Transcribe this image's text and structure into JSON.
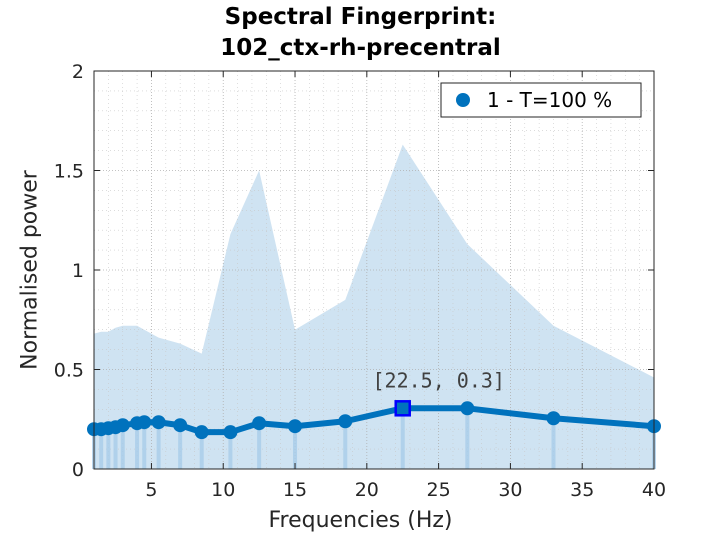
{
  "chart_data": {
    "type": "line",
    "title_line1": "Spectral Fingerprint:",
    "title_line2": "102_ctx-rh-precentral",
    "xlabel": "Frequencies (Hz)",
    "ylabel": "Normalised power",
    "xlim": [
      1,
      40
    ],
    "ylim": [
      0,
      2
    ],
    "xticks": [
      5,
      10,
      15,
      20,
      25,
      30,
      35,
      40
    ],
    "yticks": [
      0,
      0.5,
      1,
      1.5,
      2
    ],
    "ytick_labels": [
      "0",
      "0.5",
      "1",
      "1.5",
      "2"
    ],
    "grid": true,
    "minor_grid": true,
    "legend_position": "top-right",
    "series_color": "#0072BD",
    "band_color": "#CFE3F2",
    "series": [
      {
        "name": "1 - T=100 %",
        "x": [
          1,
          1.5,
          2,
          2.5,
          3,
          4,
          4.5,
          5.5,
          7,
          8.5,
          10.5,
          12.5,
          15,
          18.5,
          22.5,
          27,
          33,
          40
        ],
        "y": [
          0.2,
          0.2,
          0.205,
          0.21,
          0.22,
          0.23,
          0.235,
          0.235,
          0.22,
          0.185,
          0.185,
          0.23,
          0.215,
          0.24,
          0.305,
          0.305,
          0.255,
          0.215
        ]
      }
    ],
    "band_upper": {
      "x": [
        1,
        1.5,
        2,
        2.5,
        3,
        4,
        4.5,
        5.5,
        7,
        8.5,
        10.5,
        12.5,
        15,
        18.5,
        22.5,
        27,
        33,
        40
      ],
      "y": [
        0.68,
        0.69,
        0.69,
        0.71,
        0.72,
        0.72,
        0.7,
        0.66,
        0.63,
        0.58,
        1.18,
        1.5,
        0.7,
        0.85,
        1.63,
        1.13,
        0.72,
        0.46
      ]
    },
    "datatip": {
      "x": 22.5,
      "y": 0.305,
      "label": "[22.5, 0.3]"
    }
  }
}
